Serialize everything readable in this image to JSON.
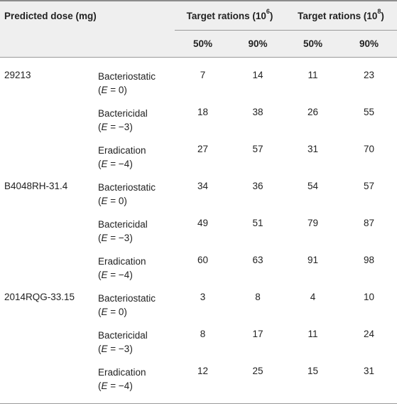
{
  "header": {
    "row_label": "Predicted dose (mg)",
    "group1_prefix": "Target rations (10",
    "group1_exp": "6",
    "group1_suffix": ")",
    "group2_prefix": "Target rations (10",
    "group2_exp": "8",
    "group2_suffix": ")",
    "sub": [
      "50%",
      "90%",
      "50%",
      "90%"
    ]
  },
  "rows": [
    {
      "strain": "29213",
      "effect": "Bacteriostatic",
      "e_value": "0",
      "values": [
        "7",
        "14",
        "11",
        "23"
      ]
    },
    {
      "strain": "",
      "effect": "Bactericidal",
      "e_value": "−3",
      "values": [
        "18",
        "38",
        "26",
        "55"
      ]
    },
    {
      "strain": "",
      "effect": "Eradication",
      "e_value": "−4",
      "values": [
        "27",
        "57",
        "31",
        "70"
      ]
    },
    {
      "strain": "B4048RH-31.4",
      "effect": "Bacteriostatic",
      "e_value": "0",
      "values": [
        "34",
        "36",
        "54",
        "57"
      ]
    },
    {
      "strain": "",
      "effect": "Bactericidal",
      "e_value": "−3",
      "values": [
        "49",
        "51",
        "79",
        "87"
      ]
    },
    {
      "strain": "",
      "effect": "Eradication",
      "e_value": "−4",
      "values": [
        "60",
        "63",
        "91",
        "98"
      ]
    },
    {
      "strain": "2014RQG-33.15",
      "effect": "Bacteriostatic",
      "e_value": "0",
      "values": [
        "3",
        "8",
        "4",
        "10"
      ]
    },
    {
      "strain": "",
      "effect": "Bactericidal",
      "e_value": "−3",
      "values": [
        "8",
        "17",
        "11",
        "24"
      ]
    },
    {
      "strain": "",
      "effect": "Eradication",
      "e_value": "−4",
      "values": [
        "12",
        "25",
        "15",
        "31"
      ]
    }
  ]
}
